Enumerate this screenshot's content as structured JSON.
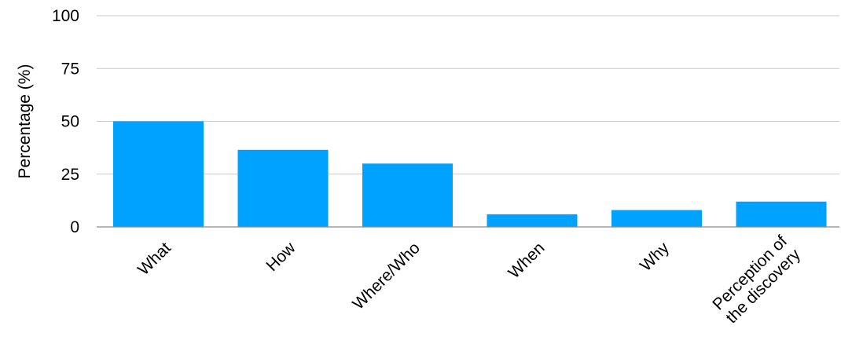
{
  "chart_data": {
    "type": "bar",
    "title": "",
    "xlabel": "",
    "ylabel": "Percentage (%)",
    "ylim": [
      0,
      100
    ],
    "yticks": [
      0,
      25,
      50,
      75,
      100
    ],
    "grid": true,
    "categories": [
      "What",
      "How",
      "Where/Who",
      "When",
      "Why",
      "Perception of the discovery"
    ],
    "category_lines": [
      [
        "What"
      ],
      [
        "How"
      ],
      [
        "Where/Who"
      ],
      [
        "When"
      ],
      [
        "Why"
      ],
      [
        "Perception of",
        "the discovery"
      ]
    ],
    "values": [
      50,
      36.5,
      30,
      6,
      8,
      12
    ],
    "bar_color": "#00a2ff",
    "grid_color": "#c9c9c9",
    "axis_color": "#8a8a8a"
  }
}
